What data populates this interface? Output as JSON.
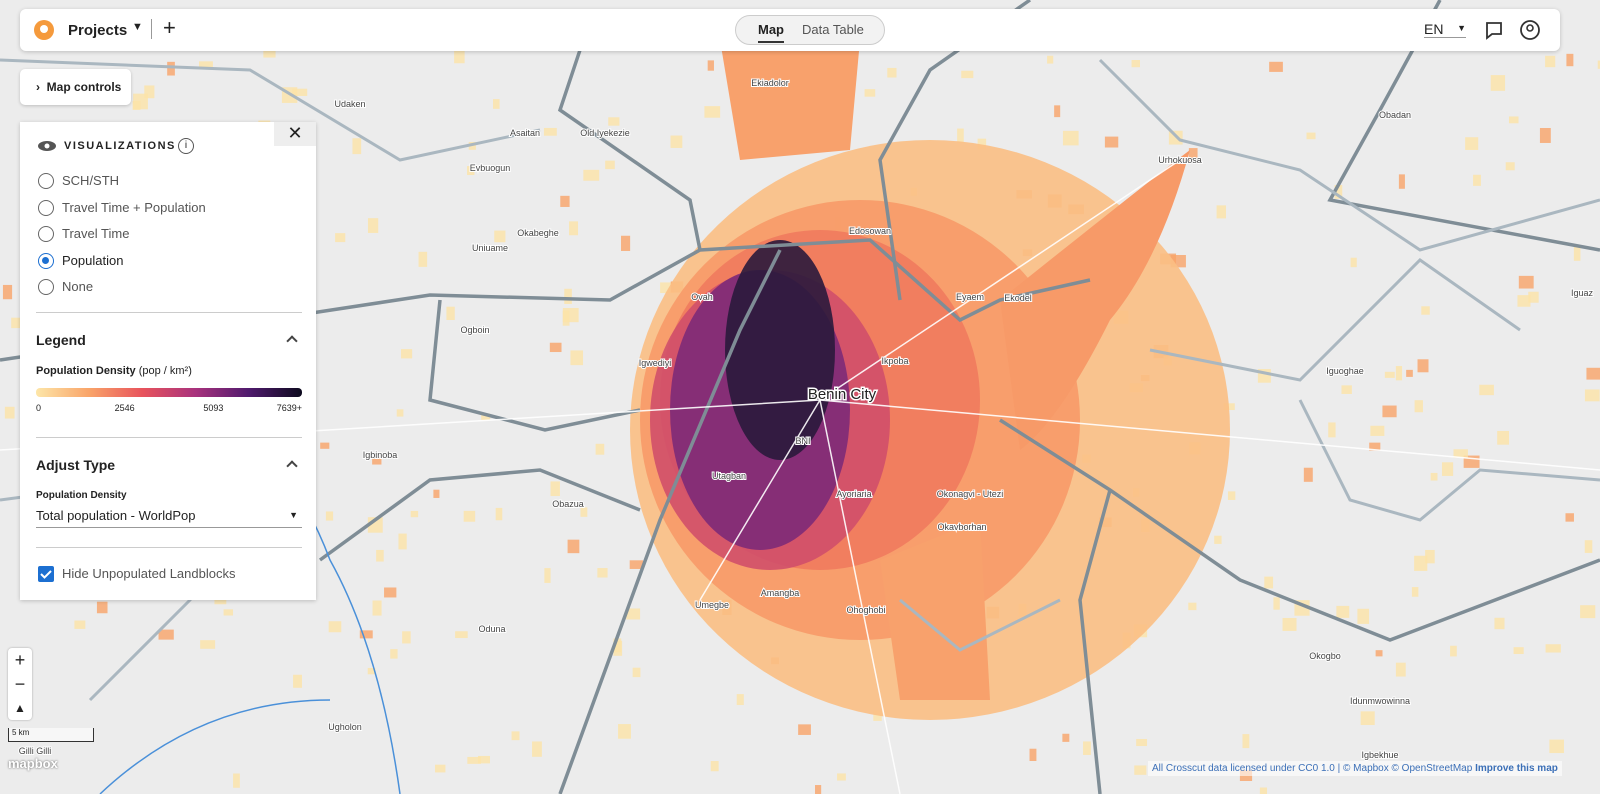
{
  "header": {
    "project": "Projects",
    "tabs": [
      {
        "label": "Map",
        "active": true
      },
      {
        "label": "Data Table",
        "active": false
      }
    ],
    "language": "EN"
  },
  "map_controls": "Map controls",
  "panel": {
    "title": "VISUALIZATIONS",
    "options": [
      {
        "label": "SCH/STH",
        "selected": false
      },
      {
        "label": "Travel Time + Population",
        "selected": false
      },
      {
        "label": "Travel Time",
        "selected": false
      },
      {
        "label": "Population",
        "selected": true
      },
      {
        "label": "None",
        "selected": false
      }
    ],
    "legend": {
      "title": "Legend",
      "label": "Population Density",
      "unit": "(pop / km²)",
      "ticks": [
        "0",
        "2546",
        "5093",
        "7639+"
      ]
    },
    "adjust": {
      "title": "Adjust Type",
      "field_label": "Population Density",
      "select": "Total population - WorldPop"
    },
    "checkbox": {
      "label": "Hide Unpopulated Landblocks",
      "checked": true
    }
  },
  "map": {
    "places": [
      "Udaken",
      "Ekiadolor",
      "Asaitan",
      "Old Iyekezie",
      "Obadan",
      "Evbuogun",
      "Urhokuosa",
      "Okabeghe",
      "Uniuame",
      "Edosowan",
      "Ovah",
      "Eyaem",
      "Ekodel",
      "Ogboin",
      "Igwediyi",
      "Ikpoba",
      "Benin City",
      "BNI",
      "Iguaz",
      "Igbinoba",
      "Iguoghae",
      "Utagban",
      "Obazua",
      "Ayoriaria",
      "Okonagvi - Utezi",
      "Okavborhan",
      "Amangba",
      "Umegbe",
      "Oduna",
      "Ohoghobi",
      "Okogbo",
      "Idunmwowinna",
      "Ugholon",
      "Igbekhue",
      "Gilli Gilli"
    ],
    "scale": "5 km",
    "logo": "mapbox",
    "attribution": "All Crosscut data licensed under CC0 1.0 | © Mapbox © OpenStreetMap",
    "improve": "Improve this map"
  }
}
